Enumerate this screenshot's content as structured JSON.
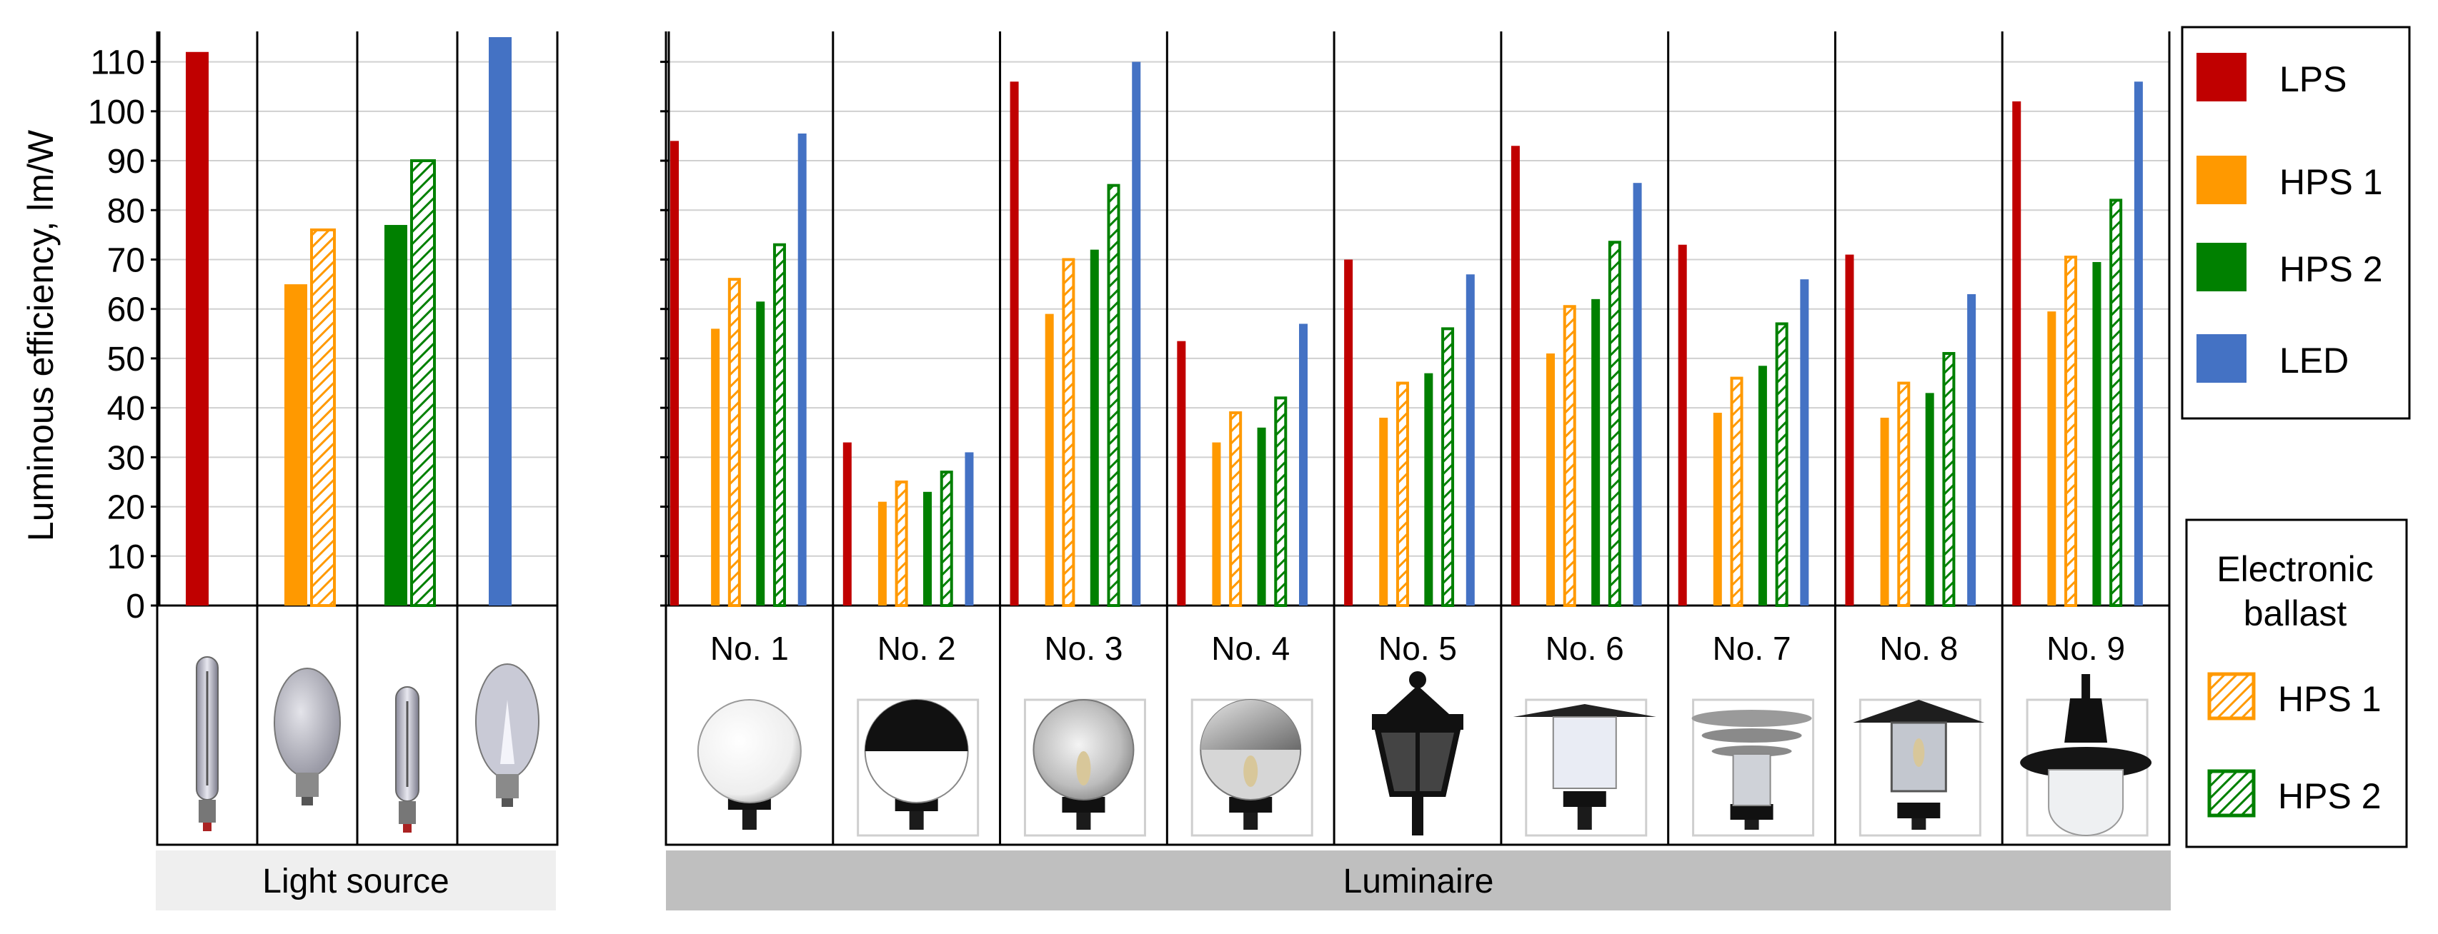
{
  "chart_data": {
    "type": "bar",
    "ylabel": "Luminous efficiency, lm/W",
    "ylim": [
      0,
      115
    ],
    "yticks": [
      0,
      10,
      20,
      30,
      40,
      50,
      60,
      70,
      80,
      90,
      100,
      110
    ],
    "grid": true,
    "legend_position": "right",
    "series": [
      {
        "name": "LPS",
        "color": "#c00000",
        "pattern": "solid"
      },
      {
        "name": "HPS 1",
        "color": "#ff9900",
        "pattern": "solid"
      },
      {
        "name": "HPS 1",
        "color": "#ff9900",
        "pattern": "hatched",
        "group": "Electronic ballast"
      },
      {
        "name": "HPS 2",
        "color": "#008000",
        "pattern": "solid"
      },
      {
        "name": "HPS 2",
        "color": "#008000",
        "pattern": "hatched",
        "group": "Electronic ballast"
      },
      {
        "name": "LED",
        "color": "#4472c4",
        "pattern": "solid"
      }
    ],
    "panels": [
      {
        "band_label": "Light source",
        "groups": [
          {
            "label": "",
            "values": [
              112,
              null,
              null,
              null,
              null,
              null
            ],
            "image": "lps-lamp"
          },
          {
            "label": "",
            "values": [
              null,
              65,
              76,
              null,
              null,
              null
            ],
            "image": "hps1-lamp"
          },
          {
            "label": "",
            "values": [
              null,
              null,
              null,
              77,
              90,
              null
            ],
            "image": "hps2-lamp"
          },
          {
            "label": "",
            "values": [
              null,
              null,
              null,
              null,
              null,
              115
            ],
            "image": "led-lamp"
          }
        ]
      },
      {
        "band_label": "Luminaire",
        "groups": [
          {
            "label": "No. 1",
            "values": [
              94,
              56,
              66,
              61.5,
              73,
              95.5
            ],
            "image": "white-globe-luminaire"
          },
          {
            "label": "No. 2",
            "values": [
              33,
              21,
              25,
              23,
              27,
              31
            ],
            "image": "half-black-globe-luminaire"
          },
          {
            "label": "No. 3",
            "values": [
              106,
              59,
              70,
              72,
              85,
              110
            ],
            "image": "clear-globe-luminaire"
          },
          {
            "label": "No. 4",
            "values": [
              53.5,
              33,
              39,
              36,
              42,
              57
            ],
            "image": "mirror-globe-luminaire"
          },
          {
            "label": "No. 5",
            "values": [
              70,
              38,
              45,
              47,
              56,
              67
            ],
            "image": "lantern-luminaire"
          },
          {
            "label": "No. 6",
            "values": [
              93,
              51,
              60.5,
              62,
              73.5,
              85.5
            ],
            "image": "wide-hat-luminaire"
          },
          {
            "label": "No. 7",
            "values": [
              73,
              39,
              46,
              48.5,
              57,
              66
            ],
            "image": "tiered-luminaire"
          },
          {
            "label": "No. 8",
            "values": [
              71,
              38,
              45,
              43,
              51,
              63
            ],
            "image": "hat-lantern-luminaire"
          },
          {
            "label": "No. 9",
            "values": [
              102,
              59.5,
              70.5,
              69.5,
              82,
              106
            ],
            "image": "pendant-luminaire"
          }
        ]
      }
    ]
  },
  "legend": {
    "main_items": [
      {
        "label": "LPS",
        "color": "#c00000"
      },
      {
        "label": "HPS 1",
        "color": "#ff9900"
      },
      {
        "label": "HPS 2",
        "color": "#008000"
      },
      {
        "label": "LED",
        "color": "#4472c4"
      }
    ],
    "ballast_title_line1": "Electronic",
    "ballast_title_line2": "ballast",
    "ballast_items": [
      {
        "label": "HPS 1",
        "color": "#ff9900"
      },
      {
        "label": "HPS 2",
        "color": "#008000"
      }
    ]
  }
}
